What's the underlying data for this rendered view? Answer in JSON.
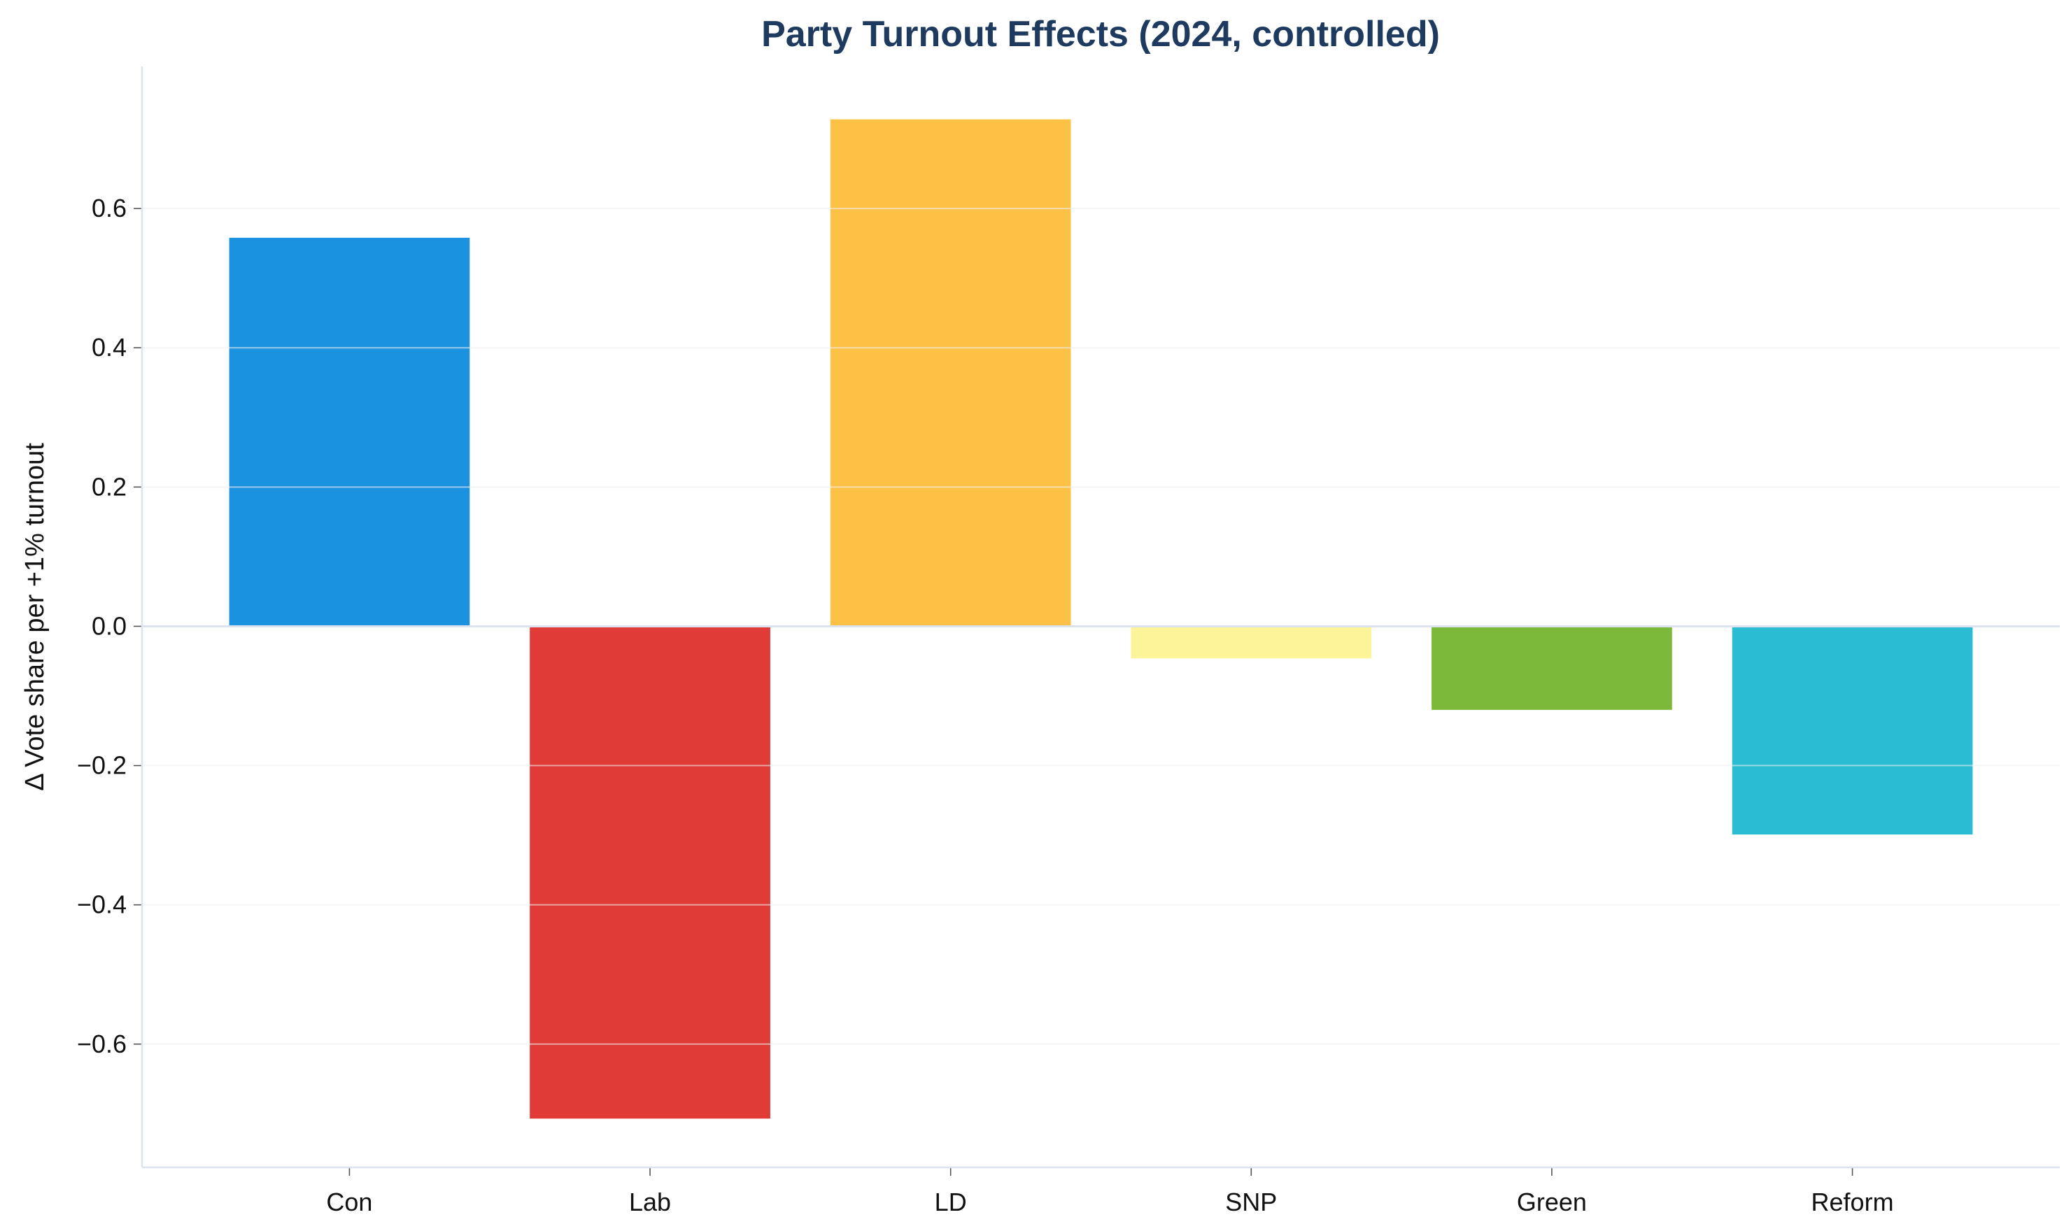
{
  "chart_data": {
    "type": "bar",
    "title": "Party Turnout Effects (2024, controlled)",
    "xlabel": "",
    "ylabel": "Δ Vote share per +1% turnout",
    "categories": [
      "Con",
      "Lab",
      "LD",
      "SNP",
      "Green",
      "Reform"
    ],
    "values": [
      0.558,
      -0.707,
      0.728,
      -0.046,
      -0.12,
      -0.299
    ],
    "colors": [
      "#1b92e0",
      "#e03b37",
      "#fdc146",
      "#fdf49a",
      "#7cb83a",
      "#29bcd3"
    ],
    "ylim": [
      -0.777,
      0.804
    ],
    "yticks": [
      -0.6,
      -0.4,
      -0.2,
      0.0,
      0.2,
      0.4,
      0.6
    ],
    "ytick_labels": [
      "−0.6",
      "−0.4",
      "−0.2",
      "0.0",
      "0.2",
      "0.4",
      "0.6"
    ],
    "grid": "horizontal",
    "legend": "none",
    "title_color": "#1f3a5f"
  }
}
